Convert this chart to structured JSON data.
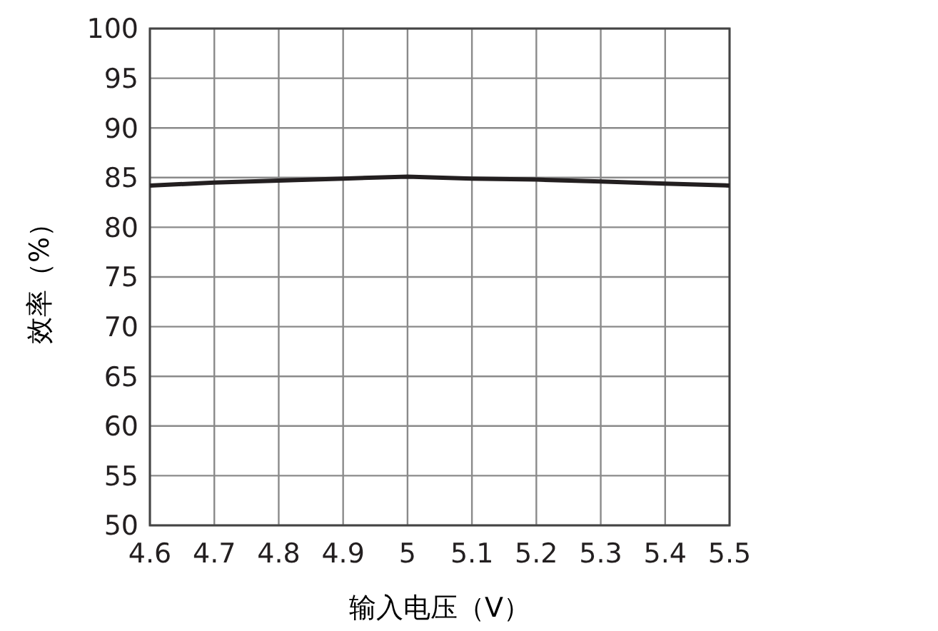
{
  "chart_data": {
    "type": "line",
    "xlabel": "输入电压（V）",
    "ylabel": "效率（%）",
    "x": [
      4.6,
      4.7,
      4.8,
      4.9,
      5.0,
      5.1,
      5.2,
      5.3,
      5.4,
      5.5
    ],
    "series": [
      {
        "color": "#231f20",
        "values": [
          84.2,
          84.5,
          84.7,
          84.9,
          85.1,
          84.9,
          84.8,
          84.6,
          84.4,
          84.2
        ]
      }
    ],
    "xlim": [
      4.6,
      5.5
    ],
    "xticks": [
      4.6,
      4.7,
      4.8,
      4.9,
      5,
      5.1,
      5.2,
      5.3,
      5.4,
      5.5
    ],
    "ylim": [
      50,
      100
    ],
    "yticks": [
      50,
      55,
      60,
      65,
      70,
      75,
      80,
      85,
      90,
      95,
      100
    ],
    "grid": true,
    "line_style": "solid"
  }
}
